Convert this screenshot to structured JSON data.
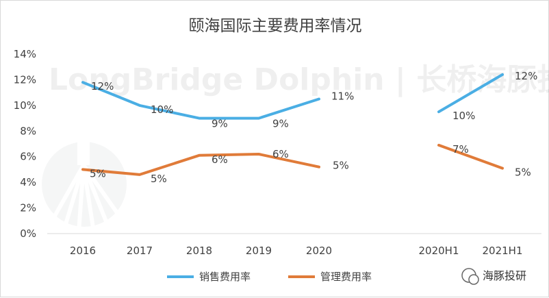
{
  "chart_data": {
    "type": "line",
    "title": "颐海国际主要费用率情况",
    "categories": [
      "2016",
      "2017",
      "2018",
      "2019",
      "2020",
      "2020H1",
      "2021H1"
    ],
    "ylim": [
      0,
      14
    ],
    "yticks": [
      "0%",
      "2%",
      "4%",
      "6%",
      "8%",
      "10%",
      "12%",
      "14%"
    ],
    "grid": false,
    "legend_position": "bottom",
    "series": [
      {
        "name": "销售费用率",
        "color": "#4aaee4",
        "values": [
          11.8,
          10.0,
          9.0,
          9.0,
          10.5,
          9.5,
          12.4
        ],
        "labels": [
          "12%",
          "10%",
          "9%",
          "9%",
          "11%",
          "10%",
          "12%"
        ]
      },
      {
        "name": "管理费用率",
        "color": "#e07b39",
        "values": [
          5.0,
          4.6,
          6.1,
          6.2,
          5.2,
          6.9,
          5.1
        ],
        "labels": [
          "5%",
          "5%",
          "6%",
          "6%",
          "5%",
          "7%",
          "5%"
        ]
      }
    ]
  },
  "watermark": "LongBridge Dolphin | 长桥海豚投研",
  "footer_brand": "海豚投研"
}
